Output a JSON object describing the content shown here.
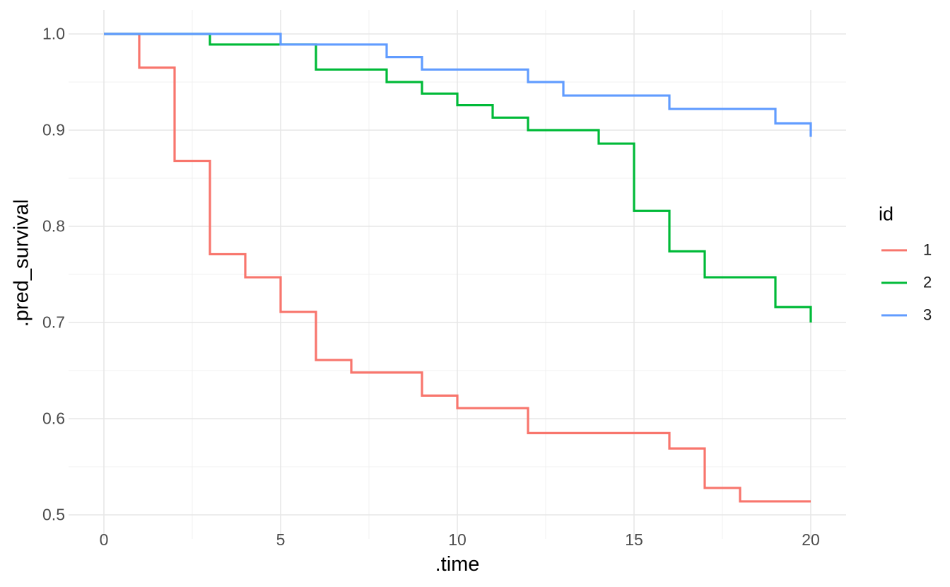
{
  "chart_data": {
    "type": "line",
    "step_style": "step-after",
    "title": "",
    "xlabel": ".time",
    "ylabel": ".pred_survival",
    "legend_title": "id",
    "legend_position": "right",
    "grid": true,
    "background_color": "#FFFFFF",
    "grid_major_color": "#E7E7E7",
    "grid_minor_color": "#F1F1F1",
    "tick_text_color": "#4D4D4D",
    "xlim": [
      -1,
      21
    ],
    "ylim": [
      0.475,
      1.025
    ],
    "xticks": [
      0,
      5,
      10,
      15,
      20
    ],
    "xtick_labels": [
      "0",
      "5",
      "10",
      "15",
      "20"
    ],
    "yticks": [
      0.5,
      0.6,
      0.7,
      0.8,
      0.9,
      1.0
    ],
    "ytick_labels": [
      "0.5",
      "0.6",
      "0.7",
      "0.8",
      "0.9",
      "1.0"
    ],
    "x_minor_ticks": [
      2.5,
      7.5,
      12.5,
      17.5
    ],
    "y_minor_ticks": [
      0.55,
      0.65,
      0.75,
      0.85,
      0.95
    ],
    "x": [
      0,
      1,
      2,
      3,
      4,
      5,
      6,
      7,
      8,
      9,
      10,
      11,
      12,
      13,
      14,
      15,
      16,
      17,
      18,
      19,
      20
    ],
    "series": [
      {
        "name": "1",
        "color": "#F8766D",
        "values": [
          1.0,
          0.965,
          0.868,
          0.771,
          0.747,
          0.711,
          0.661,
          0.648,
          0.648,
          0.624,
          0.611,
          0.611,
          0.585,
          0.585,
          0.585,
          0.585,
          0.569,
          0.528,
          0.514,
          0.514,
          0.514
        ]
      },
      {
        "name": "2",
        "color": "#00BA38",
        "values": [
          1.0,
          1.0,
          1.0,
          0.989,
          0.989,
          0.989,
          0.963,
          0.963,
          0.95,
          0.938,
          0.926,
          0.913,
          0.9,
          0.9,
          0.886,
          0.816,
          0.774,
          0.747,
          0.747,
          0.716,
          0.7
        ]
      },
      {
        "name": "3",
        "color": "#619CFF",
        "values": [
          1.0,
          1.0,
          1.0,
          1.0,
          1.0,
          0.989,
          0.989,
          0.989,
          0.976,
          0.963,
          0.963,
          0.963,
          0.95,
          0.936,
          0.936,
          0.936,
          0.922,
          0.922,
          0.922,
          0.907,
          0.893
        ]
      }
    ]
  }
}
